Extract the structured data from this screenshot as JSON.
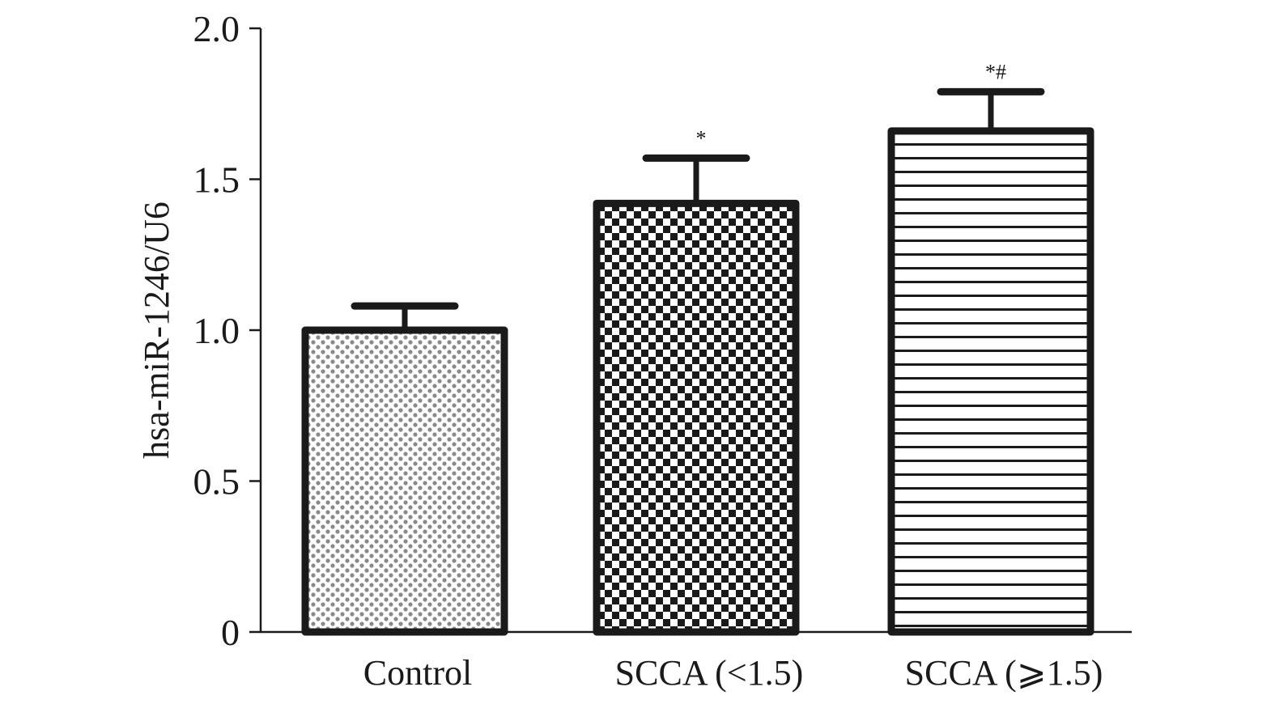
{
  "chart_data": {
    "type": "bar",
    "title": "",
    "xlabel": "",
    "ylabel": "hsa-miR-1246/U6",
    "ylim": [
      0,
      2.0
    ],
    "yticks": [
      0,
      0.5,
      1.0,
      1.5,
      2.0
    ],
    "ytick_labels": [
      "0",
      "0.5",
      "1.0",
      "1.5",
      "2.0"
    ],
    "categories": [
      "Control",
      "SCCA (<1.5)",
      "SCCA (⩾1.5)"
    ],
    "values": [
      1.0,
      1.42,
      1.66
    ],
    "error": [
      0.08,
      0.15,
      0.13
    ],
    "annotations": [
      "",
      "*",
      "*#"
    ],
    "patterns": [
      "dots",
      "checker",
      "horizontal-lines"
    ],
    "grid": false,
    "legend": "none",
    "colors": {
      "ink": "#1a1a1a",
      "fill": "#ffffff"
    }
  }
}
